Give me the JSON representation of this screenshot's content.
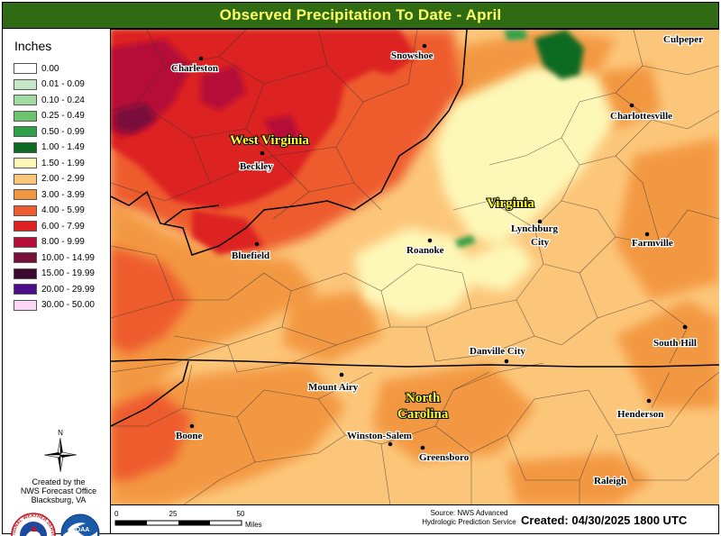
{
  "title": "Observed Precipitation To Date - April",
  "legend": {
    "title": "Inches",
    "items": [
      {
        "label": "0.00",
        "color": "#ffffff"
      },
      {
        "label": "0.01 - 0.09",
        "color": "#c5e7c6"
      },
      {
        "label": "0.10 - 0.24",
        "color": "#a1dba1"
      },
      {
        "label": "0.25 - 0.49",
        "color": "#6fc26f"
      },
      {
        "label": "0.50 - 0.99",
        "color": "#2fa04a"
      },
      {
        "label": "1.00 - 1.49",
        "color": "#0e6b22"
      },
      {
        "label": "1.50 - 1.99",
        "color": "#fdf8b8"
      },
      {
        "label": "2.00 - 2.99",
        "color": "#fcc67a"
      },
      {
        "label": "3.00 - 3.99",
        "color": "#f3963f"
      },
      {
        "label": "4.00 - 5.99",
        "color": "#ee5b2f"
      },
      {
        "label": "6.00 - 7.99",
        "color": "#dd2222"
      },
      {
        "label": "8.00 - 9.99",
        "color": "#b50e37"
      },
      {
        "label": "10.00 - 14.99",
        "color": "#7a0f3a"
      },
      {
        "label": "15.00 - 19.99",
        "color": "#3e0930"
      },
      {
        "label": "20.00 - 29.99",
        "color": "#4b0d8a"
      },
      {
        "label": "30.00 - 50.00",
        "color": "#fbd6f6"
      }
    ]
  },
  "compass_letter": "N",
  "credit": {
    "line1": "Created by the",
    "line2": "NWS Forecast Office",
    "line3": "Blacksburg, VA"
  },
  "logos": {
    "nws_text": "NATIONAL WEATHER SERVICE",
    "noaa_text": "NOAA"
  },
  "cities": [
    {
      "name": "Charleston"
    },
    {
      "name": "Snowshoe"
    },
    {
      "name": "Culpeper"
    },
    {
      "name": "Charlottesville"
    },
    {
      "name": "Beckley"
    },
    {
      "name": "Bluefield"
    },
    {
      "name": "Roanoke"
    },
    {
      "name": "Lynchburg"
    },
    {
      "name": "City"
    },
    {
      "name": "Farmville"
    },
    {
      "name": "Danville City"
    },
    {
      "name": "South Hill"
    },
    {
      "name": "Mount Airy"
    },
    {
      "name": "Henderson"
    },
    {
      "name": "Boone"
    },
    {
      "name": "Winston-Salem"
    },
    {
      "name": "Greensboro"
    },
    {
      "name": "Raleigh"
    }
  ],
  "states": [
    {
      "name": "West Virginia"
    },
    {
      "name": "Virginia"
    },
    {
      "name": "North"
    },
    {
      "name": "Carolina"
    }
  ],
  "scale": {
    "ticks": [
      "0",
      "25",
      "50"
    ],
    "unit": "Miles"
  },
  "source": {
    "line1": "Source: NWS Advanced",
    "line2": "Hydrologic Prediction Service"
  },
  "created": "Created: 04/30/2025 1800 UTC"
}
